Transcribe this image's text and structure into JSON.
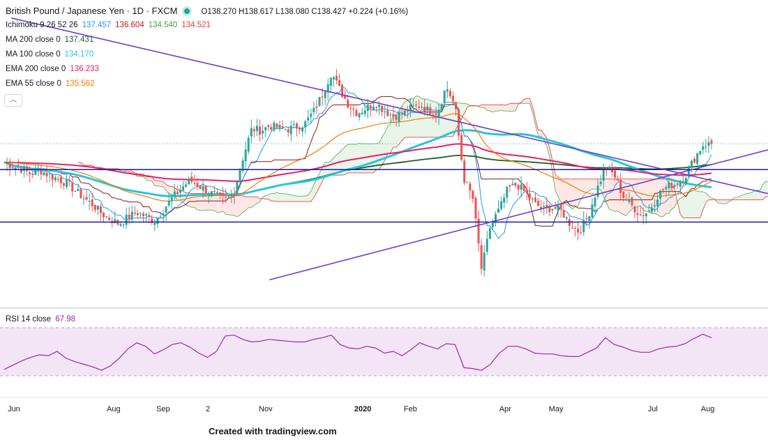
{
  "header": {
    "title": "British Pound / Japanese Yen · 1D · FXCM",
    "ohlc": "O138.270 H138.617 L138.080 C138.427 +0.224 (+0.16%)"
  },
  "indicators": [
    {
      "label": "Ichimoku 9 26 52 26",
      "values": [
        {
          "text": "137.457",
          "color": "#2196f3"
        },
        {
          "text": "136.604",
          "color": "#b71c1c"
        },
        {
          "text": "134.540",
          "color": "#43a047"
        },
        {
          "text": "134.521",
          "color": "#e53935"
        }
      ]
    },
    {
      "label": "MA 200 close 0",
      "values": [
        {
          "text": "137.431",
          "color": "#1b5e20"
        }
      ]
    },
    {
      "label": "MA 100 close 0",
      "values": [
        {
          "text": "134.170",
          "color": "#26c6da"
        }
      ]
    },
    {
      "label": "EMA 200 close 0",
      "values": [
        {
          "text": "136.233",
          "color": "#e91e63"
        }
      ]
    },
    {
      "label": "EMA 55 close 0",
      "values": [
        {
          "text": "135.562",
          "color": "#f57c00"
        }
      ]
    }
  ],
  "rsi": {
    "label": "RSI 14 close",
    "value": "67.98",
    "color": "#9c27b0"
  },
  "x_axis_labels": [
    "Jun",
    "Aug",
    "Sep",
    "2",
    "Nov",
    "2020",
    "Feb",
    "Apr",
    "May",
    "Jul",
    "Aug"
  ],
  "footer": "Created with tradingview.com",
  "chart_data": {
    "type": "candlestick",
    "ohlc_last": {
      "open": 138.27,
      "high": 138.617,
      "low": 138.08,
      "close": 138.427,
      "change": 0.224,
      "change_pct": 0.16
    },
    "price_path": [
      136.5,
      136.1,
      135.8,
      135.3,
      135.7,
      135.2,
      134.8,
      134.4,
      133.6,
      132.8,
      132.1,
      131.2,
      130.6,
      130.1,
      130.8,
      131.3,
      130.9,
      130.4,
      131.6,
      132.8,
      133.8,
      134.6,
      134.1,
      133.5,
      133.0,
      132.6,
      133.4,
      137.0,
      140.0,
      139.8,
      140.3,
      140.1,
      139.9,
      140.2,
      140.5,
      141.8,
      143.6,
      145.8,
      144.0,
      142.4,
      141.6,
      142.2,
      142.7,
      141.9,
      141.3,
      141.5,
      142.1,
      142.4,
      141.9,
      141.7,
      144.4,
      142.3,
      134.8,
      132.8,
      125.3,
      130.0,
      131.6,
      133.8,
      134.2,
      133.3,
      132.2,
      131.6,
      131.8,
      131.5,
      130.1,
      129.3,
      130.8,
      133.6,
      136.0,
      135.2,
      133.0,
      132.0,
      131.0,
      131.5,
      133.2,
      134.0,
      134.3,
      135.0,
      136.8,
      138.3,
      138.43
    ],
    "reference_lines": [
      {
        "name": "upper horizontal",
        "price": 135.75
      },
      {
        "name": "lower horizontal",
        "price": 130.3
      }
    ],
    "trendlines": [
      {
        "name": "descending",
        "points": [
          [
            0.01,
            151.5
          ],
          [
            0.96,
            135.3
          ]
        ]
      },
      {
        "name": "ascending",
        "points": [
          [
            0.375,
            124.3
          ],
          [
            0.97,
            135.7
          ]
        ]
      }
    ],
    "rsi_range": [
      30,
      70
    ],
    "rsi_values": [
      31,
      36,
      41,
      45,
      48,
      47,
      52,
      44,
      40,
      37,
      34,
      30,
      35,
      44,
      55,
      62,
      58,
      49,
      54,
      60,
      62,
      57,
      50,
      45,
      52,
      70,
      71,
      66,
      63,
      64,
      66,
      65,
      64,
      63,
      63,
      66,
      68,
      71,
      60,
      56,
      55,
      58,
      56,
      50,
      52,
      47,
      54,
      62,
      58,
      55,
      61,
      60,
      33,
      32,
      30,
      37,
      50,
      58,
      58,
      55,
      50,
      49,
      49,
      47,
      46,
      46,
      51,
      56,
      68,
      60,
      57,
      53,
      51,
      51,
      55,
      57,
      58,
      61,
      67,
      72,
      68
    ]
  }
}
